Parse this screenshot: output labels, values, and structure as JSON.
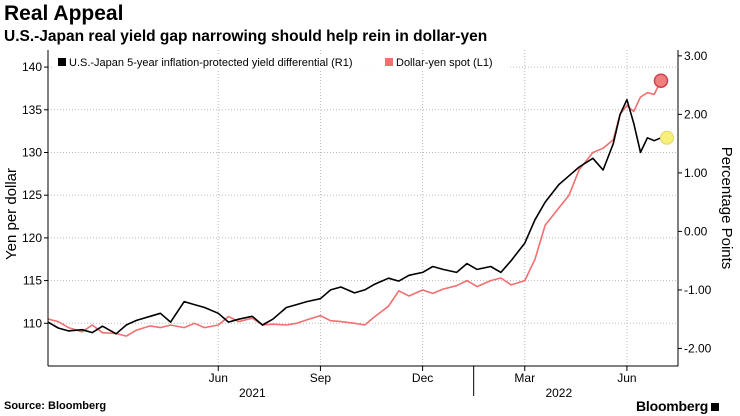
{
  "title": "Real Appeal",
  "subtitle": "U.S.-Japan real yield gap narrowing should help rein in dollar-yen",
  "source": "Source: Bloomberg",
  "brand": "Bloomberg",
  "chart_data": {
    "type": "line",
    "title": "Real Appeal",
    "ylabel": "Yen per dollar",
    "y2label": "Percentage Points",
    "ylim": [
      105,
      142
    ],
    "y2lim": [
      -2.3,
      3.1
    ],
    "yticks": [
      "110",
      "115",
      "120",
      "125",
      "130",
      "135",
      "140"
    ],
    "y2ticks": [
      "-2.00",
      "-1.00",
      "0.00",
      "1.00",
      "2.00",
      "3.00"
    ],
    "xlim": [
      0,
      18.5
    ],
    "xticks": [
      {
        "label": "Jun",
        "x": 5
      },
      {
        "label": "Sep",
        "x": 8
      },
      {
        "label": "Dec",
        "x": 11
      },
      {
        "label": "Mar",
        "x": 14
      },
      {
        "label": "Jun",
        "x": 17
      }
    ],
    "year_labels": [
      {
        "label": "2021",
        "x": 6
      },
      {
        "label": "2022",
        "x": 15
      }
    ],
    "series": [
      {
        "name": "U.S.-Japan 5-year inflation-protected yield differential (R1)",
        "axis": "right",
        "color": "#000000",
        "x": [
          0,
          0.3,
          0.6,
          1,
          1.3,
          1.6,
          2,
          2.3,
          2.6,
          3,
          3.3,
          3.6,
          4,
          4.3,
          4.6,
          5,
          5.3,
          5.6,
          6,
          6.3,
          6.6,
          7,
          7.3,
          7.6,
          8,
          8.3,
          8.6,
          9,
          9.3,
          9.6,
          10,
          10.3,
          10.6,
          11,
          11.3,
          11.6,
          12,
          12.3,
          12.6,
          13,
          13.3,
          13.6,
          14,
          14.3,
          14.6,
          15,
          15.3,
          15.6,
          16,
          16.3,
          16.6,
          16.8,
          17,
          17.2,
          17.4,
          17.6,
          17.8,
          18
        ],
        "values": [
          -1.55,
          -1.65,
          -1.7,
          -1.68,
          -1.73,
          -1.62,
          -1.75,
          -1.6,
          -1.52,
          -1.45,
          -1.4,
          -1.55,
          -1.2,
          -1.25,
          -1.3,
          -1.4,
          -1.55,
          -1.5,
          -1.45,
          -1.6,
          -1.5,
          -1.3,
          -1.25,
          -1.2,
          -1.15,
          -1.0,
          -0.95,
          -1.05,
          -1.0,
          -0.9,
          -0.8,
          -0.85,
          -0.75,
          -0.7,
          -0.6,
          -0.65,
          -0.7,
          -0.55,
          -0.65,
          -0.6,
          -0.7,
          -0.5,
          -0.2,
          0.2,
          0.5,
          0.8,
          0.95,
          1.1,
          1.25,
          1.05,
          1.5,
          2.0,
          2.25,
          1.85,
          1.35,
          1.6,
          1.55,
          1.6
        ]
      },
      {
        "name": "Dollar-yen spot (L1)",
        "axis": "left",
        "color": "#f07070",
        "x": [
          0,
          0.3,
          0.6,
          1,
          1.3,
          1.6,
          2,
          2.3,
          2.6,
          3,
          3.3,
          3.6,
          4,
          4.3,
          4.6,
          5,
          5.3,
          5.6,
          6,
          6.3,
          6.6,
          7,
          7.3,
          7.6,
          8,
          8.3,
          8.6,
          9,
          9.3,
          9.6,
          10,
          10.3,
          10.6,
          11,
          11.3,
          11.6,
          12,
          12.3,
          12.6,
          13,
          13.3,
          13.6,
          14,
          14.3,
          14.6,
          15,
          15.3,
          15.6,
          16,
          16.3,
          16.6,
          16.8,
          17,
          17.2,
          17.4,
          17.6,
          17.8,
          18
        ],
        "values": [
          110.5,
          110.2,
          109.5,
          109.0,
          109.8,
          108.9,
          108.8,
          108.5,
          109.2,
          109.7,
          109.5,
          109.8,
          109.5,
          110.0,
          109.5,
          109.8,
          110.8,
          110.2,
          110.6,
          109.8,
          109.9,
          109.8,
          110.0,
          110.4,
          110.9,
          110.3,
          110.2,
          110.0,
          109.8,
          110.8,
          112.0,
          113.8,
          113.2,
          113.9,
          113.5,
          114.0,
          114.4,
          115.0,
          114.3,
          115.0,
          115.3,
          114.5,
          115.0,
          117.5,
          121.5,
          123.5,
          125.0,
          128.0,
          130.0,
          130.5,
          131.5,
          134.5,
          135.5,
          134.8,
          136.5,
          137.0,
          136.8,
          138.4
        ]
      }
    ],
    "markers": [
      {
        "series": 1,
        "label": "end"
      },
      {
        "series": 0,
        "label": "end"
      }
    ]
  }
}
